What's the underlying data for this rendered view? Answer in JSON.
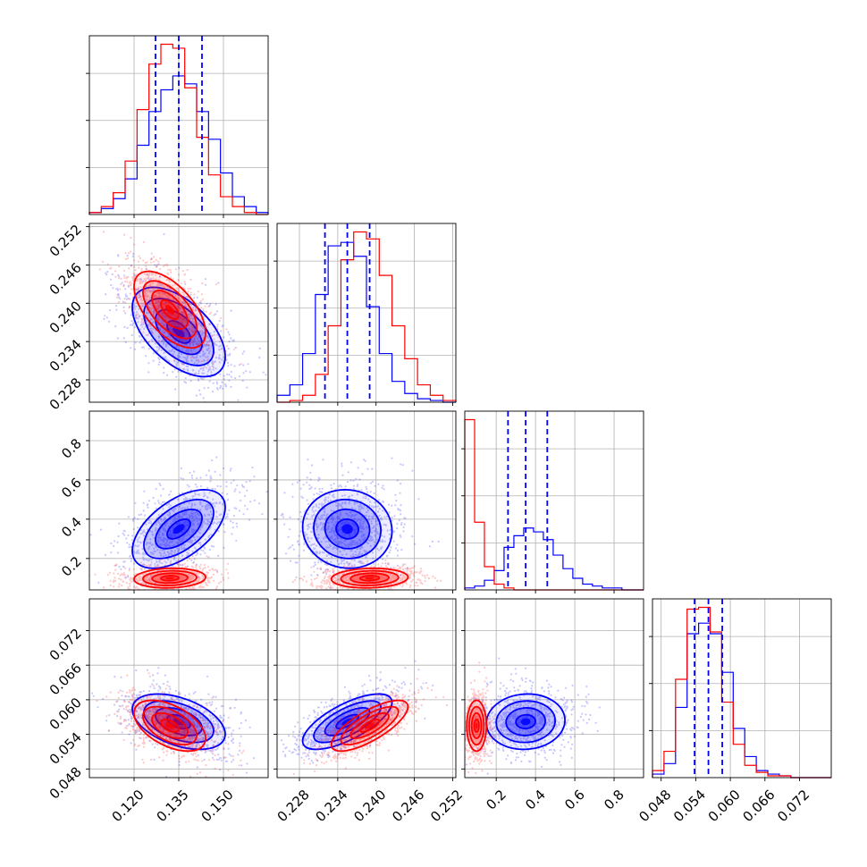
{
  "chart_data": {
    "type": "corner",
    "title": "",
    "series": [
      {
        "name": "",
        "color": "#0000ff"
      },
      {
        "name": "",
        "color": "#ff0000"
      }
    ],
    "params": [
      {
        "range": [
          0.105,
          0.165
        ],
        "ticks": [
          0.12,
          0.135,
          0.15
        ],
        "tick_labels": [
          "0.120",
          "0.135",
          "0.150"
        ]
      },
      {
        "range": [
          0.2245,
          0.2525
        ],
        "ticks": [
          0.228,
          0.234,
          0.24,
          0.246,
          0.252
        ],
        "tick_labels": [
          "0.228",
          "0.234",
          "0.240",
          "0.246",
          "0.252"
        ]
      },
      {
        "range": [
          0.04,
          0.95
        ],
        "ticks": [
          0.2,
          0.4,
          0.6,
          0.8
        ],
        "tick_labels": [
          "0.2",
          "0.4",
          "0.6",
          "0.8"
        ]
      },
      {
        "range": [
          0.0465,
          0.0775
        ],
        "ticks": [
          0.048,
          0.054,
          0.06,
          0.066,
          0.072
        ],
        "tick_labels": [
          "0.048",
          "0.054",
          "0.060",
          "0.066",
          "0.072"
        ]
      }
    ],
    "quantiles_blue": [
      [
        0.1272,
        0.135,
        0.1428
      ],
      [
        0.232,
        0.2355,
        0.239
      ],
      [
        0.26,
        0.35,
        0.46
      ],
      [
        0.0538,
        0.0562,
        0.0586
      ]
    ],
    "histograms": [
      {
        "bin_edges": [
          0.105,
          0.109,
          0.113,
          0.117,
          0.121,
          0.125,
          0.129,
          0.133,
          0.137,
          0.141,
          0.145,
          0.149,
          0.153,
          0.157,
          0.161,
          0.165
        ],
        "blue": [
          1,
          3,
          8,
          18,
          35,
          52,
          63,
          70,
          66,
          52,
          38,
          21,
          9,
          4,
          1
        ],
        "red": [
          1,
          4,
          11,
          27,
          53,
          76,
          86,
          84,
          64,
          39,
          20,
          9,
          4,
          1,
          0
        ]
      },
      {
        "bin_edges": [
          0.2245,
          0.2265,
          0.2285,
          0.2305,
          0.2325,
          0.2345,
          0.2365,
          0.2385,
          0.2405,
          0.2425,
          0.2445,
          0.2465,
          0.2485,
          0.2505,
          0.2525
        ],
        "blue": [
          4,
          10,
          28,
          62,
          90,
          92,
          84,
          55,
          28,
          12,
          5,
          2,
          1,
          0
        ],
        "red": [
          0,
          1,
          4,
          16,
          44,
          82,
          98,
          94,
          73,
          44,
          25,
          10,
          4,
          1
        ]
      },
      {
        "bin_edges": [
          0.04,
          0.09,
          0.14,
          0.19,
          0.24,
          0.29,
          0.34,
          0.39,
          0.44,
          0.49,
          0.54,
          0.59,
          0.64,
          0.69,
          0.74,
          0.79,
          0.84,
          0.89,
          0.95
        ],
        "blue": [
          1,
          2,
          5,
          10,
          22,
          28,
          32,
          30,
          26,
          18,
          11,
          6,
          3,
          2,
          1,
          1,
          0,
          0
        ],
        "red": [
          88,
          35,
          12,
          3,
          1,
          0,
          0,
          0,
          0,
          0,
          0,
          0,
          0,
          0,
          0,
          0,
          0,
          0
        ]
      },
      {
        "bin_edges": [
          0.0465,
          0.0485,
          0.0505,
          0.0525,
          0.0545,
          0.0565,
          0.0585,
          0.0605,
          0.0625,
          0.0645,
          0.0665,
          0.0685,
          0.0705,
          0.0725,
          0.0745,
          0.0775
        ],
        "blue": [
          2,
          8,
          40,
          82,
          88,
          82,
          60,
          28,
          12,
          4,
          2,
          1,
          0,
          0,
          0
        ],
        "red": [
          4,
          15,
          56,
          96,
          97,
          83,
          43,
          19,
          7,
          3,
          1,
          1,
          0,
          0,
          0
        ]
      }
    ],
    "correlation_blue": {
      "0-1": -0.55,
      "0-2": 0.55,
      "0-3": -0.45,
      "1-2": -0.05,
      "1-3": 0.7,
      "2-3": 0.05
    },
    "correlation_red": {
      "0-1": -0.6,
      "0-2": 0.1,
      "0-3": -0.5,
      "1-2": 0.1,
      "1-3": 0.75,
      "2-3": 0.0
    },
    "means_blue": [
      0.135,
      0.2355,
      0.35,
      0.0562
    ],
    "means_red": [
      0.132,
      0.239,
      0.1,
      0.0555
    ],
    "sigmas_blue": [
      0.0078,
      0.0035,
      0.1,
      0.0024
    ],
    "sigmas_red": [
      0.006,
      0.003,
      0.025,
      0.0022
    ],
    "grid": true
  }
}
